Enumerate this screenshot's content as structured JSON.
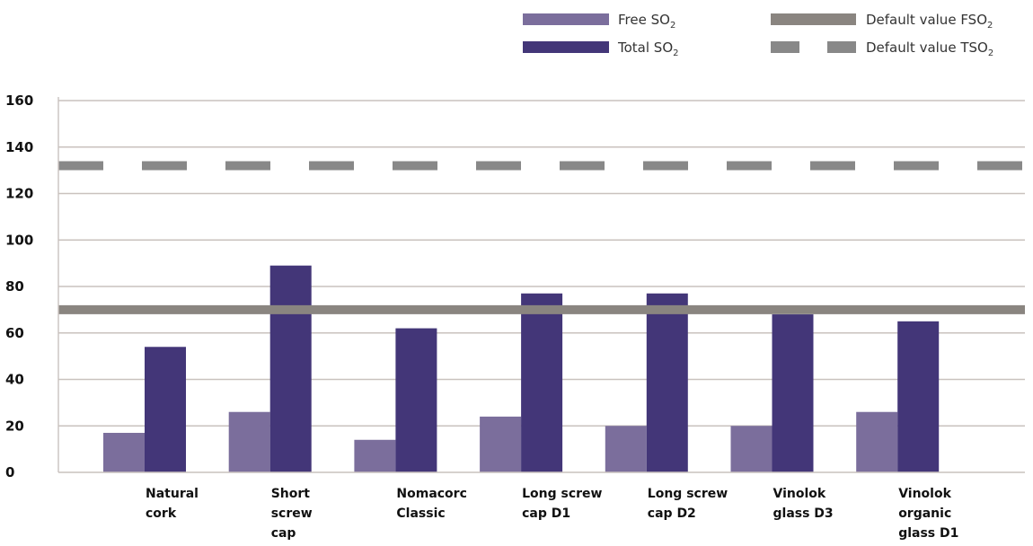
{
  "chart_data": {
    "type": "bar",
    "categories": [
      "Natural cork",
      "Short screw cap",
      "Nomacorc Classic",
      "Long screw cap D1",
      "Long screw cap D2",
      "Vinolok glass D3",
      "Vinolok organic glass D1"
    ],
    "category_lines": [
      [
        "Natural",
        "cork"
      ],
      [
        "Short",
        "screw",
        "cap"
      ],
      [
        "Nomacorc",
        "Classic"
      ],
      [
        "Long screw",
        "cap D1"
      ],
      [
        "Long screw",
        "cap D2"
      ],
      [
        "Vinolok",
        "glass D3"
      ],
      [
        "Vinolok",
        "organic",
        "glass D1"
      ]
    ],
    "series": [
      {
        "name": "Free SO",
        "name_sub": "2",
        "color": "#7b6e9c",
        "values": [
          17,
          26,
          14,
          24,
          20,
          20,
          26
        ]
      },
      {
        "name": "Total SO",
        "name_sub": "2",
        "color": "#433678",
        "values": [
          54,
          89,
          62,
          77,
          77,
          68,
          65
        ]
      }
    ],
    "reference_lines": [
      {
        "name": "Default value FSO",
        "name_sub": "2",
        "value": 70,
        "style": "solid",
        "color": "#8a8580"
      },
      {
        "name": "Default value TSO",
        "name_sub": "2",
        "value": 132,
        "style": "dashed",
        "color": "#888888"
      }
    ],
    "yticks": [
      "0",
      "20",
      "40",
      "60",
      "80",
      "100",
      "120",
      "140",
      "160"
    ],
    "ylim": [
      0,
      160
    ],
    "grid": true,
    "legend_position": "top-right",
    "title": "",
    "xlabel": "",
    "ylabel": ""
  }
}
